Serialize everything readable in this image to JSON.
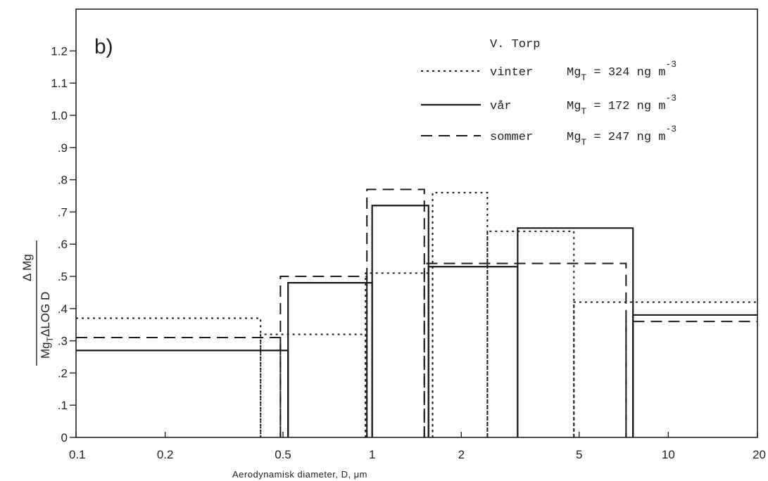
{
  "chart_data": {
    "type": "step",
    "panel_label": "b)",
    "xlabel": "Aerodynamisk diameter, D, μm",
    "ylabel": {
      "numerator": "Δ Mg",
      "denominator_base": "Mg",
      "denominator_sub": "T",
      "denominator_rest": "ΔLOG D"
    },
    "x_scale": "log",
    "xlim": [
      0.1,
      20
    ],
    "ylim": [
      0,
      1.27
    ],
    "x_ticks": [
      {
        "value": 0.1,
        "label": "0.1"
      },
      {
        "value": 0.2,
        "label": "0.2"
      },
      {
        "value": 0.5,
        "label": "0.5"
      },
      {
        "value": 1,
        "label": "1"
      },
      {
        "value": 2,
        "label": "2"
      },
      {
        "value": 5,
        "label": "5"
      },
      {
        "value": 10,
        "label": "10"
      },
      {
        "value": 20,
        "label": "20"
      }
    ],
    "y_ticks": [
      {
        "value": 0,
        "label": "0"
      },
      {
        "value": 0.1,
        "label": ".1"
      },
      {
        "value": 0.2,
        "label": ".2"
      },
      {
        "value": 0.3,
        "label": ".3"
      },
      {
        "value": 0.4,
        "label": ".4"
      },
      {
        "value": 0.5,
        "label": ".5"
      },
      {
        "value": 0.6,
        "label": ".6"
      },
      {
        "value": 0.7,
        "label": ".7"
      },
      {
        "value": 0.8,
        "label": ".8"
      },
      {
        "value": 0.9,
        "label": ".9"
      },
      {
        "value": 1.0,
        "label": "1.0"
      },
      {
        "value": 1.1,
        "label": "1.1"
      },
      {
        "value": 1.2,
        "label": "1.2"
      }
    ],
    "legend": {
      "title": "V. Torp",
      "position": "top-right"
    },
    "series": [
      {
        "name": "vinter",
        "label_value": "Mg",
        "label_sub": "T",
        "label_rest": " = 324 ng m",
        "label_exp": "-3",
        "style": "dotted",
        "bins": [
          {
            "x0": 0.1,
            "x1": 0.42,
            "y": 0.37
          },
          {
            "x0": 0.42,
            "x1": 0.95,
            "y": 0.32
          },
          {
            "x0": 0.95,
            "x1": 1.6,
            "y": 0.51
          },
          {
            "x0": 1.6,
            "x1": 2.45,
            "y": 0.76
          },
          {
            "x0": 2.45,
            "x1": 4.8,
            "y": 0.64
          },
          {
            "x0": 4.8,
            "x1": 20,
            "y": 0.42
          }
        ]
      },
      {
        "name": "vår",
        "label_value": "Mg",
        "label_sub": "T",
        "label_rest": " = 172 ng m",
        "label_exp": "-3",
        "style": "solid",
        "bins": [
          {
            "x0": 0.1,
            "x1": 0.52,
            "y": 0.27
          },
          {
            "x0": 0.52,
            "x1": 1.0,
            "y": 0.48
          },
          {
            "x0": 1.0,
            "x1": 1.55,
            "y": 0.72
          },
          {
            "x0": 1.55,
            "x1": 3.1,
            "y": 0.53
          },
          {
            "x0": 3.1,
            "x1": 7.6,
            "y": 0.65
          },
          {
            "x0": 7.6,
            "x1": 20,
            "y": 0.38
          }
        ]
      },
      {
        "name": "sommer",
        "label_value": "Mg",
        "label_sub": "T",
        "label_rest": " = 247 ng m",
        "label_exp": "-3",
        "style": "dashed",
        "bins": [
          {
            "x0": 0.1,
            "x1": 0.49,
            "y": 0.31
          },
          {
            "x0": 0.49,
            "x1": 0.96,
            "y": 0.5
          },
          {
            "x0": 0.96,
            "x1": 1.5,
            "y": 0.77
          },
          {
            "x0": 1.5,
            "x1": 7.2,
            "y": 0.54
          },
          {
            "x0": 7.2,
            "x1": 20,
            "y": 0.36
          }
        ]
      }
    ]
  }
}
